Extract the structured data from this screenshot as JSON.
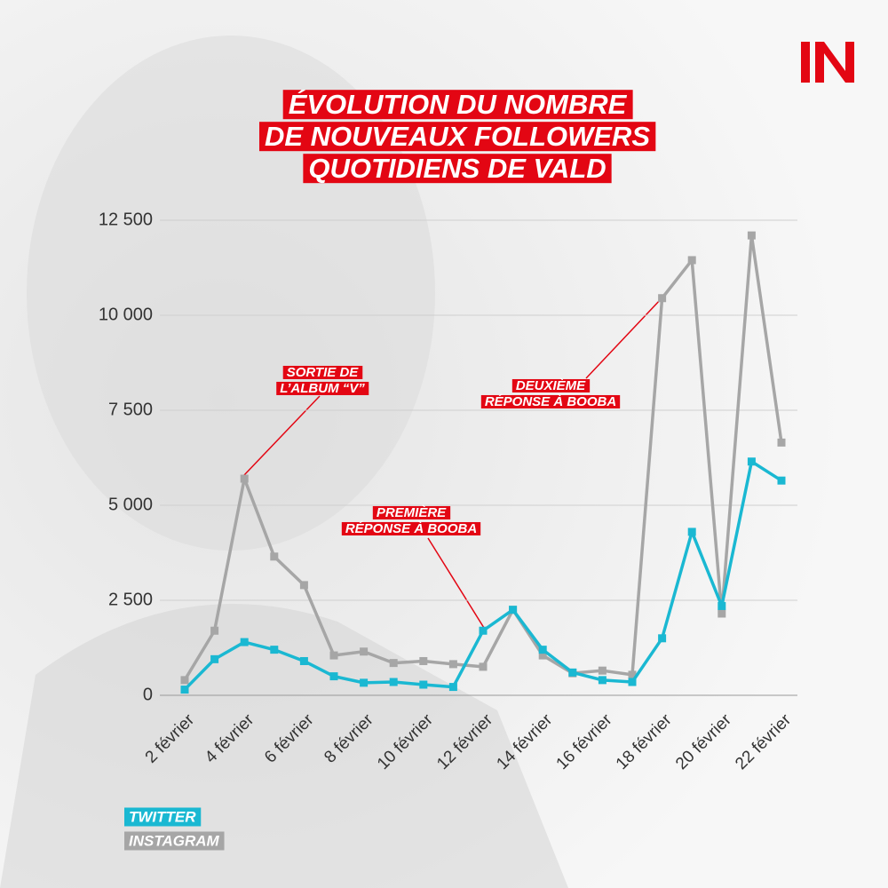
{
  "chart_data": {
    "type": "line",
    "title_lines": [
      "ÉVOLUTION DU NOMBRE",
      "DE NOUVEAUX FOLLOWERS",
      "QUOTIDIENS DE VALD"
    ],
    "categories": [
      "2 février",
      null,
      "4 février",
      null,
      "6 février",
      null,
      "8 février",
      null,
      "10 février",
      null,
      "12 février",
      null,
      "14 février",
      null,
      "16 février",
      null,
      "18 février",
      null,
      "20 février",
      null,
      "22 février"
    ],
    "series": [
      {
        "name": "INSTAGRAM",
        "color": "#a6a6a6",
        "values": [
          400,
          1700,
          5700,
          3650,
          2900,
          1050,
          1150,
          850,
          900,
          820,
          750,
          2250,
          1050,
          580,
          650,
          540,
          10450,
          11450,
          2150,
          12100,
          6650
        ]
      },
      {
        "name": "TWITTER",
        "color": "#1ab8d2",
        "values": [
          150,
          950,
          1400,
          1200,
          900,
          500,
          330,
          350,
          280,
          220,
          1700,
          2250,
          1200,
          600,
          400,
          350,
          1500,
          4300,
          2350,
          6150,
          5650
        ]
      }
    ],
    "ylim": [
      0,
      12500
    ],
    "yticks": [
      0,
      {
        "value": 2500,
        "label": "2 500"
      },
      {
        "value": 5000,
        "label": "5 000"
      },
      {
        "value": 7500,
        "label": "7 500"
      },
      {
        "value": 10000,
        "label": "10 000"
      },
      {
        "value": 12500,
        "label": "12 500"
      }
    ],
    "grid": true,
    "annotations": [
      {
        "lines": [
          "SORTIE DE",
          "L’ALBUM “V”"
        ]
      },
      {
        "lines": [
          "DEUXIÈME",
          "RÉPONSE À BOOBA"
        ]
      },
      {
        "lines": [
          "PREMIÈRE",
          "RÉPONSE À BOOBA"
        ]
      }
    ]
  }
}
